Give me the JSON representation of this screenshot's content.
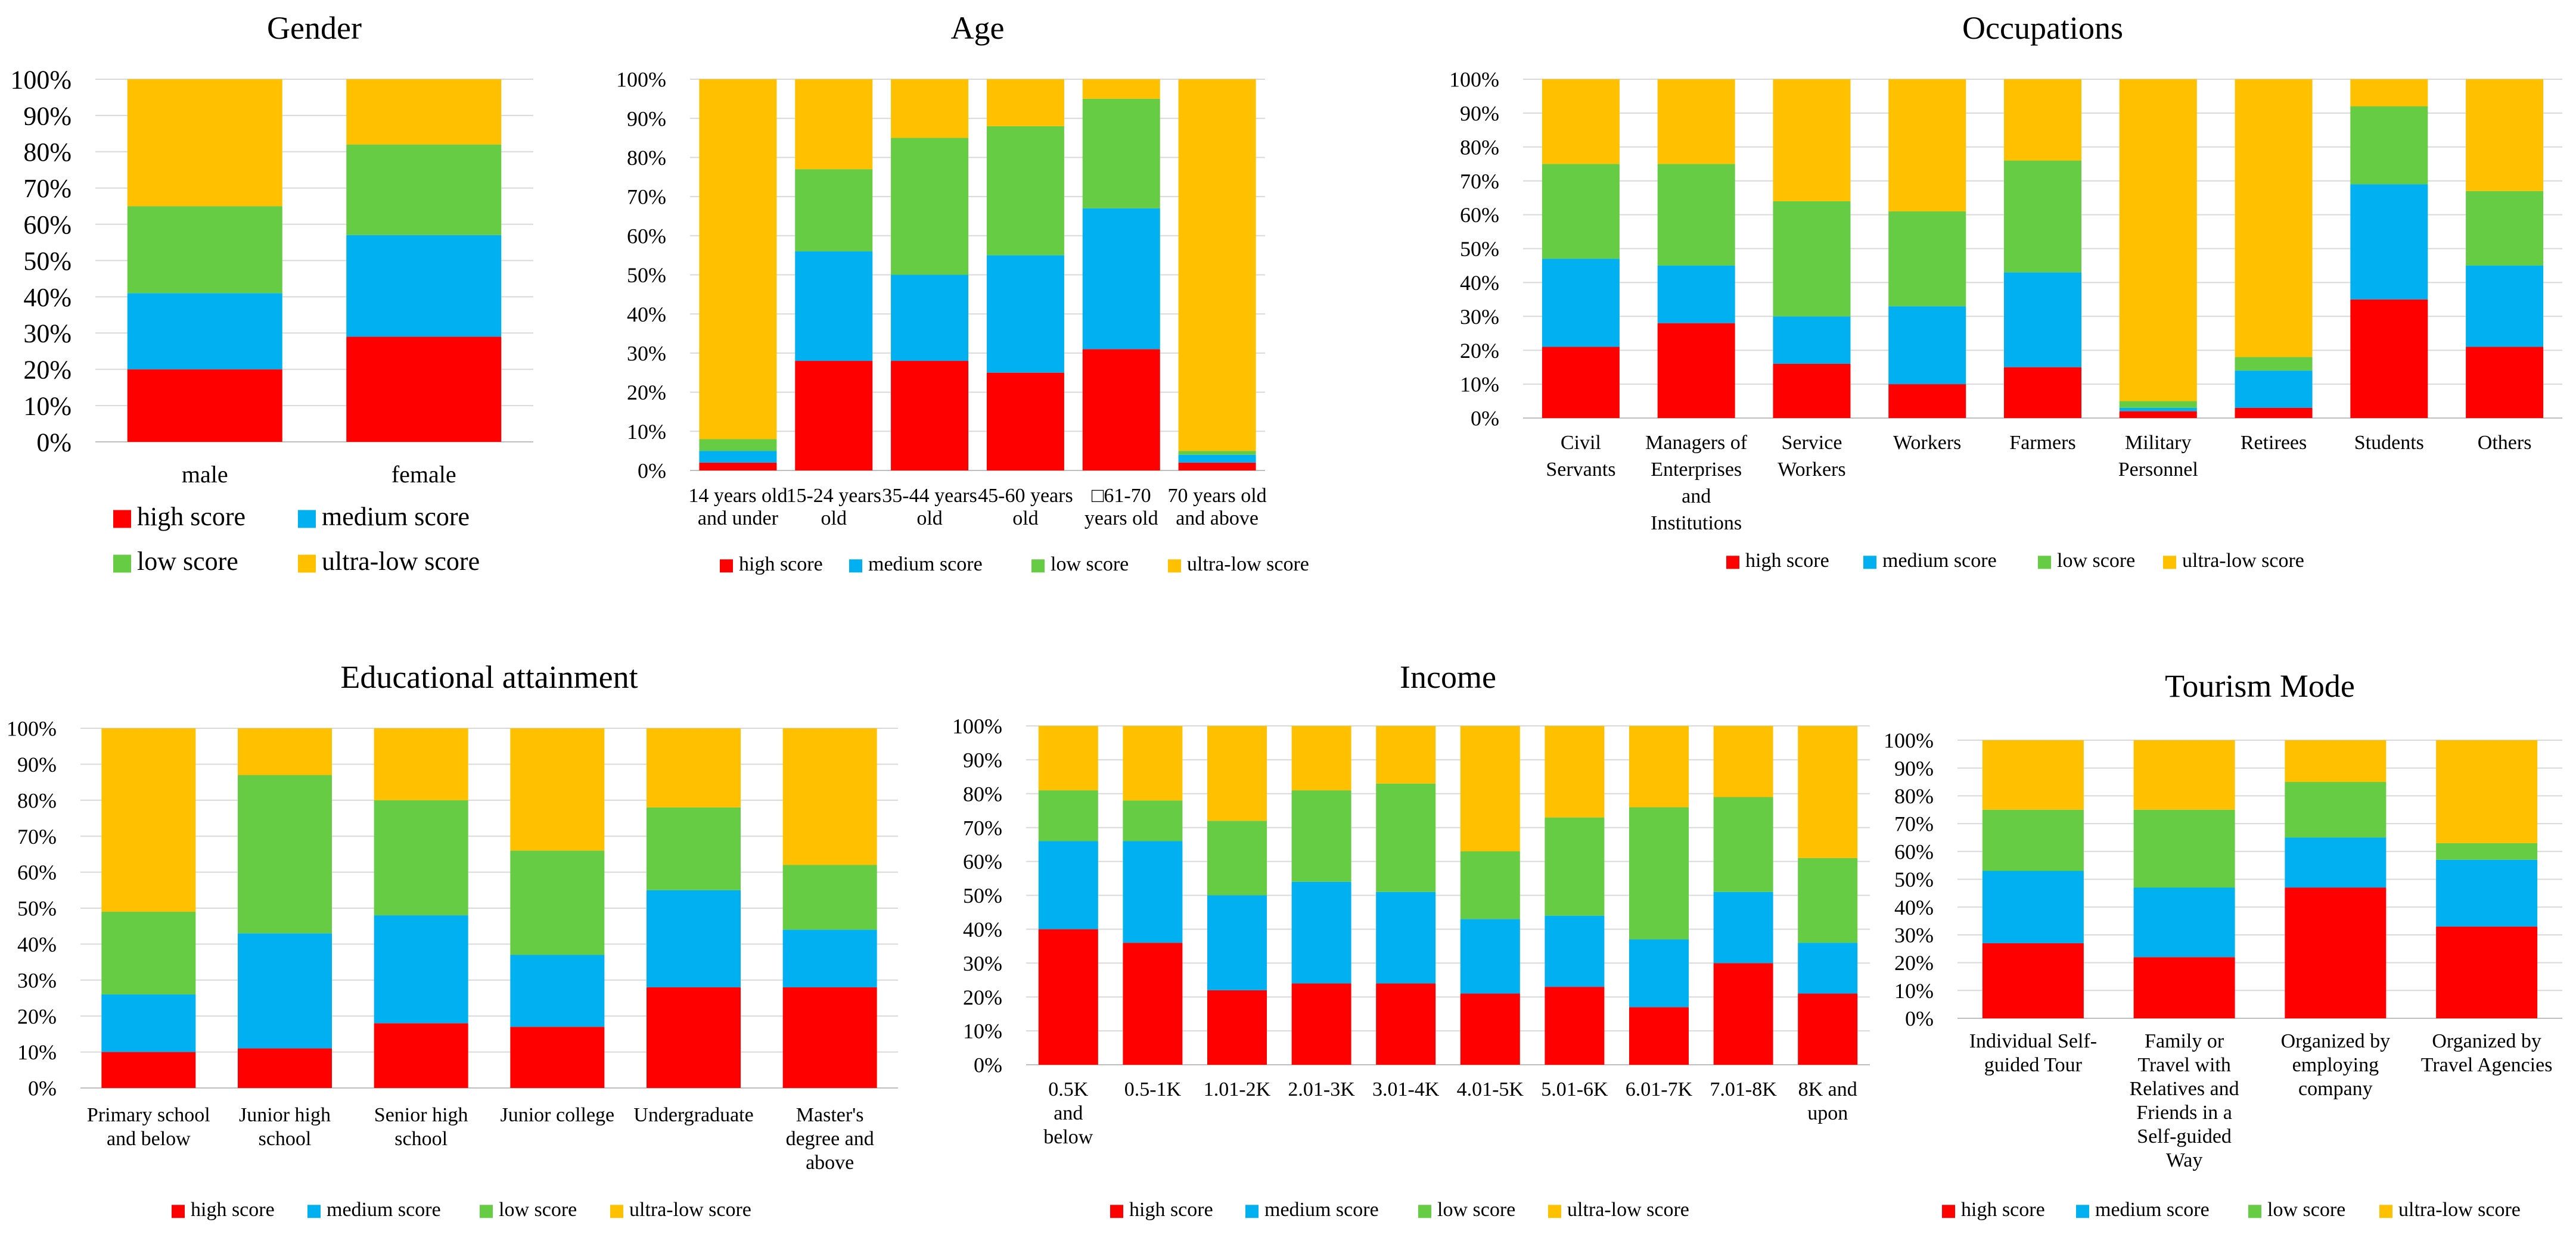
{
  "colors": {
    "high": "#FF0000",
    "medium": "#00B0F0",
    "low": "#66CC44",
    "ultra": "#FFC000",
    "grid": "#D9D9D9",
    "axis": "#BFBFBF"
  },
  "series_names": [
    "high score",
    "medium score",
    "low score",
    "ultra-low score"
  ],
  "chart_data": [
    {
      "type": "bar",
      "stacked": true,
      "title": "Gender",
      "categories": [
        [
          "male"
        ],
        [
          "female"
        ]
      ],
      "yticks": [
        "0%",
        "10%",
        "20%",
        "30%",
        "40%",
        "50%",
        "60%",
        "70%",
        "80%",
        "90%",
        "100%"
      ],
      "ylim": [
        0,
        100
      ],
      "series": [
        {
          "name": "high score",
          "values": [
            20,
            29
          ]
        },
        {
          "name": "medium score",
          "values": [
            21,
            28
          ]
        },
        {
          "name": "low score",
          "values": [
            24,
            25
          ]
        },
        {
          "name": "ultra-low score",
          "values": [
            35,
            18
          ]
        }
      ],
      "legend": "bottom-two-rows"
    },
    {
      "type": "bar",
      "stacked": true,
      "title": "Age",
      "categories": [
        [
          "14 years old",
          "and under"
        ],
        [
          "15-24 years",
          "old"
        ],
        [
          "35-44 years",
          "old"
        ],
        [
          "45-60 years",
          "old"
        ],
        [
          "□61-70",
          "years old"
        ],
        [
          "70 years old",
          "and above"
        ]
      ],
      "yticks": [
        "0%",
        "10%",
        "20%",
        "30%",
        "40%",
        "50%",
        "60%",
        "70%",
        "80%",
        "90%",
        "100%"
      ],
      "ylim": [
        0,
        100
      ],
      "series": [
        {
          "name": "high score",
          "values": [
            2,
            28,
            28,
            25,
            31,
            2
          ]
        },
        {
          "name": "medium score",
          "values": [
            3,
            28,
            22,
            30,
            36,
            2
          ]
        },
        {
          "name": "low score",
          "values": [
            3,
            21,
            35,
            33,
            28,
            1
          ]
        },
        {
          "name": "ultra-low score",
          "values": [
            92,
            23,
            15,
            12,
            5,
            95
          ]
        }
      ],
      "legend": "bottom"
    },
    {
      "type": "bar",
      "stacked": true,
      "title": "Occupations",
      "categories": [
        [
          "Civil",
          "Servants"
        ],
        [
          "Managers of",
          "Enterprises",
          "and",
          "Institutions"
        ],
        [
          "Service",
          "Workers"
        ],
        [
          "Workers"
        ],
        [
          "Farmers"
        ],
        [
          "Military",
          "Personnel"
        ],
        [
          "Retirees"
        ],
        [
          "Students"
        ],
        [
          "Others"
        ]
      ],
      "yticks": [
        "0%",
        "10%",
        "20%",
        "30%",
        "40%",
        "50%",
        "60%",
        "70%",
        "80%",
        "90%",
        "100%"
      ],
      "ylim": [
        0,
        100
      ],
      "series": [
        {
          "name": "high score",
          "values": [
            21,
            28,
            16,
            10,
            15,
            2,
            3,
            35,
            21
          ]
        },
        {
          "name": "medium score",
          "values": [
            26,
            17,
            14,
            23,
            28,
            1,
            11,
            34,
            24
          ]
        },
        {
          "name": "low score",
          "values": [
            28,
            30,
            34,
            28,
            33,
            2,
            4,
            23,
            22
          ]
        },
        {
          "name": "ultra-low score",
          "values": [
            25,
            25,
            36,
            39,
            24,
            95,
            82,
            8,
            33
          ]
        }
      ],
      "legend": "bottom"
    },
    {
      "type": "bar",
      "stacked": true,
      "title": "Educational attainment",
      "categories": [
        [
          "Primary school",
          "and below"
        ],
        [
          "Junior high",
          "school"
        ],
        [
          "Senior high",
          "school"
        ],
        [
          "Junior college"
        ],
        [
          "Undergraduate"
        ],
        [
          "Master's",
          "degree and",
          "above"
        ]
      ],
      "yticks": [
        "0%",
        "10%",
        "20%",
        "30%",
        "40%",
        "50%",
        "60%",
        "70%",
        "80%",
        "90%",
        "100%"
      ],
      "ylim": [
        0,
        100
      ],
      "series": [
        {
          "name": "high score",
          "values": [
            10,
            11,
            18,
            17,
            28,
            28
          ]
        },
        {
          "name": "medium score",
          "values": [
            16,
            32,
            30,
            20,
            27,
            16
          ]
        },
        {
          "name": "low score",
          "values": [
            23,
            44,
            32,
            29,
            23,
            18
          ]
        },
        {
          "name": "ultra-low score",
          "values": [
            51,
            13,
            20,
            34,
            22,
            38
          ]
        }
      ],
      "legend": "bottom"
    },
    {
      "type": "bar",
      "stacked": true,
      "title": "Income",
      "categories": [
        [
          "0.5K",
          "and",
          "below"
        ],
        [
          "0.5-1K"
        ],
        [
          "1.01-2K"
        ],
        [
          "2.01-3K"
        ],
        [
          "3.01-4K"
        ],
        [
          "4.01-5K"
        ],
        [
          "5.01-6K"
        ],
        [
          "6.01-7K"
        ],
        [
          "7.01-8K"
        ],
        [
          "8K and",
          "upon"
        ]
      ],
      "yticks": [
        "0%",
        "10%",
        "20%",
        "30%",
        "40%",
        "50%",
        "60%",
        "70%",
        "80%",
        "90%",
        "100%"
      ],
      "ylim": [
        0,
        100
      ],
      "series": [
        {
          "name": "high score",
          "values": [
            40,
            36,
            22,
            24,
            24,
            21,
            23,
            17,
            30,
            21
          ]
        },
        {
          "name": "medium score",
          "values": [
            26,
            30,
            28,
            30,
            27,
            22,
            21,
            20,
            21,
            15
          ]
        },
        {
          "name": "low score",
          "values": [
            15,
            12,
            22,
            27,
            32,
            20,
            29,
            39,
            28,
            25
          ]
        },
        {
          "name": "ultra-low score",
          "values": [
            19,
            22,
            28,
            19,
            17,
            37,
            27,
            24,
            21,
            39
          ]
        }
      ],
      "legend": "bottom"
    },
    {
      "type": "bar",
      "stacked": true,
      "title": "Tourism Mode",
      "categories": [
        [
          "Individual Self-",
          "guided Tour"
        ],
        [
          "Family or",
          "Travel with",
          "Relatives and",
          "Friends in a",
          "Self-guided",
          "Way"
        ],
        [
          "Organized by",
          "employing",
          "company"
        ],
        [
          "Organized by",
          "Travel Agencies"
        ]
      ],
      "yticks": [
        "0%",
        "10%",
        "20%",
        "30%",
        "40%",
        "50%",
        "60%",
        "70%",
        "80%",
        "90%",
        "100%"
      ],
      "ylim": [
        0,
        100
      ],
      "series": [
        {
          "name": "high score",
          "values": [
            27,
            22,
            47,
            33
          ]
        },
        {
          "name": "medium score",
          "values": [
            26,
            25,
            18,
            24
          ]
        },
        {
          "name": "low score",
          "values": [
            22,
            28,
            20,
            6
          ]
        },
        {
          "name": "ultra-low score",
          "values": [
            25,
            25,
            15,
            37
          ]
        }
      ],
      "legend": "bottom"
    }
  ]
}
